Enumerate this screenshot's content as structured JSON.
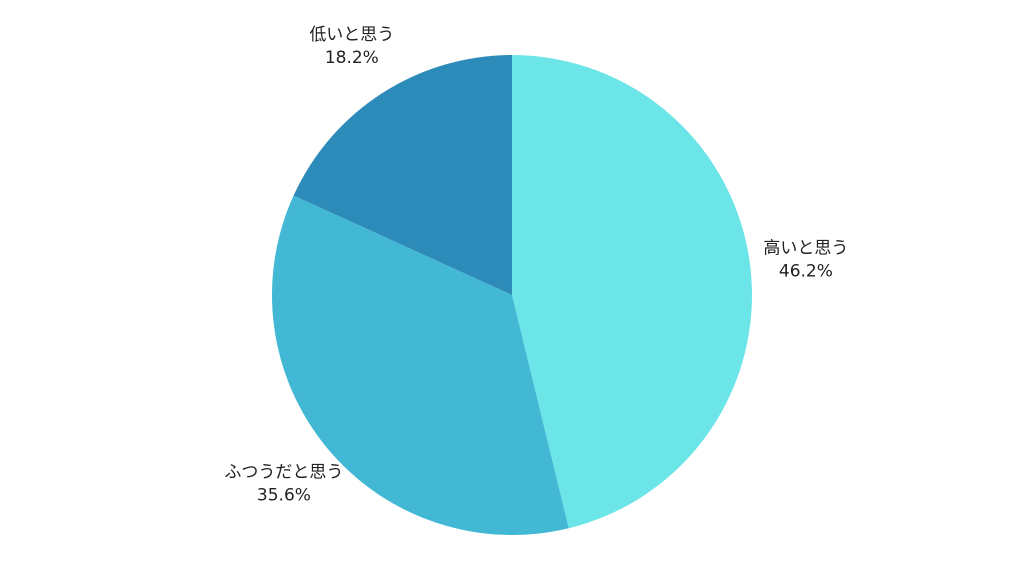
{
  "chart_data": {
    "type": "pie",
    "categories": [
      "高いと思う",
      "ふつうだと思う",
      "低いと思う"
    ],
    "values": [
      46.2,
      35.6,
      18.2
    ],
    "value_labels": [
      "46.2%",
      "35.6%",
      "18.2%"
    ],
    "colors": [
      "#6ce5e8",
      "#42b8d5",
      "#2d8bba"
    ]
  }
}
